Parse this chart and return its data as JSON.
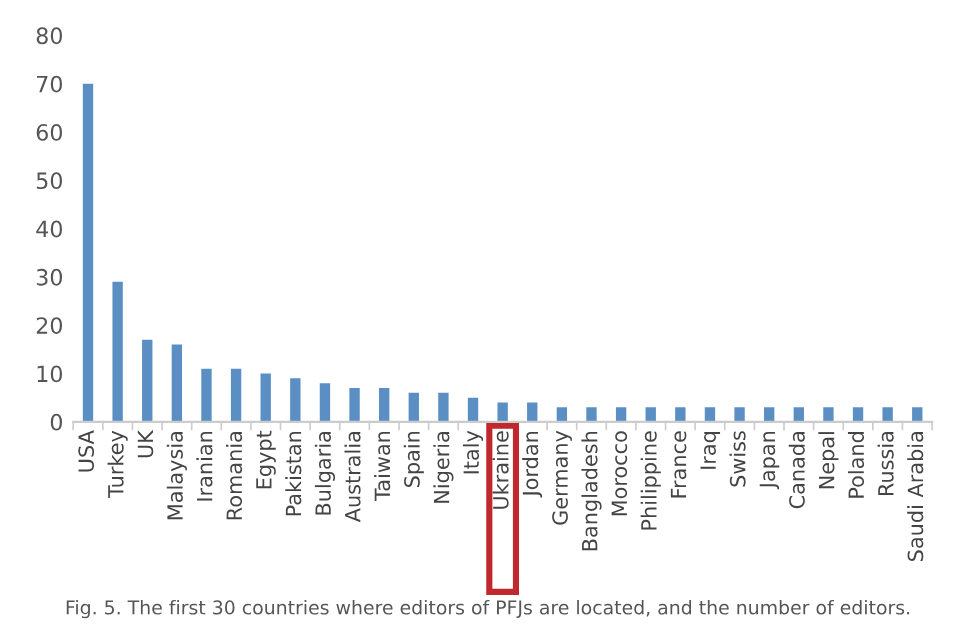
{
  "chart_data": {
    "type": "bar",
    "categories": [
      "USA",
      "Turkey",
      "UK",
      "Malaysia",
      "Iranian",
      "Romania",
      "Egypt",
      "Pakistan",
      "Bulgaria",
      "Australia",
      "Taiwan",
      "Spain",
      "Nigeria",
      "Italy",
      "Ukraine",
      "Jordan",
      "Germany",
      "Bangladesh",
      "Morocco",
      "Philippine",
      "France",
      "Iraq",
      "Swiss",
      "Japan",
      "Canada",
      "Nepal",
      "Poland",
      "Russia",
      "Saudi Arabia"
    ],
    "values": [
      70,
      29,
      17,
      16,
      11,
      11,
      10,
      9,
      8,
      7,
      7,
      6,
      6,
      5,
      4,
      4,
      3,
      3,
      3,
      3,
      3,
      3,
      3,
      3,
      3,
      3,
      3,
      3,
      3
    ],
    "color": "#5b8fc4",
    "ylim": [
      0,
      80
    ],
    "yticks": [
      0,
      10,
      20,
      30,
      40,
      50,
      60,
      70,
      80
    ],
    "grid": false,
    "annotations": [
      "Fig. 5. The first 30 countries where editors of PFJs are located, and the number of editors."
    ]
  }
}
